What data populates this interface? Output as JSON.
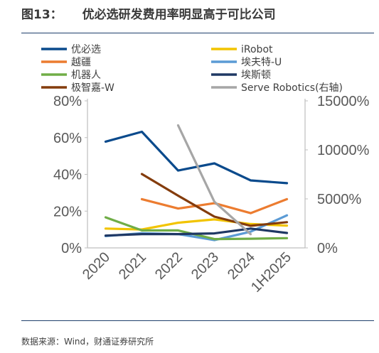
{
  "header": {
    "figure_no": "图13：",
    "title": "优必选研发费用率明显高于可比公司"
  },
  "footer": {
    "source": "数据来源：Wind，财通证券研究所"
  },
  "chart_data": {
    "type": "line",
    "categories": [
      "2020",
      "2021",
      "2022",
      "2023",
      "2024",
      "1H2025"
    ],
    "left_axis": {
      "ticks": [
        "0%",
        "20%",
        "40%",
        "60%",
        "80%"
      ],
      "ylim": [
        0,
        80
      ],
      "unit": "%"
    },
    "right_axis": {
      "ticks": [
        "0%",
        "5000%",
        "10000%",
        "15000%"
      ],
      "ylim": [
        0,
        15000
      ],
      "unit": "%"
    },
    "legend_position": "top",
    "series": [
      {
        "name": "优必选",
        "color": "#0a4a8c",
        "axis": "left",
        "values": [
          57.8,
          63.2,
          42.1,
          46.0,
          36.7,
          35.2
        ]
      },
      {
        "name": "iRobot",
        "color": "#f2c400",
        "axis": "left",
        "values": [
          10.5,
          10.0,
          13.7,
          15.5,
          13.0,
          12.1
        ]
      },
      {
        "name": "越疆",
        "color": "#ec7c30",
        "axis": "left",
        "values": [
          null,
          26.5,
          21.4,
          24.3,
          18.9,
          26.5
        ]
      },
      {
        "name": "埃夫特-U",
        "color": "#5b9bd5",
        "axis": "left",
        "values": [
          6.4,
          8.0,
          7.5,
          4.2,
          8.8,
          17.7
        ]
      },
      {
        "name": "机器人",
        "color": "#70ad47",
        "axis": "left",
        "values": [
          16.6,
          9.5,
          9.5,
          4.8,
          5.0,
          5.3
        ]
      },
      {
        "name": "埃斯顿",
        "color": "#1f3864",
        "axis": "left",
        "values": [
          6.7,
          7.5,
          7.5,
          7.9,
          10.5,
          8.1
        ]
      },
      {
        "name": "极智嘉-W",
        "color": "#843c0c",
        "axis": "left",
        "values": [
          null,
          40.2,
          28.4,
          17.0,
          12.0,
          14.0
        ]
      },
      {
        "name": "Serve Robotics(右轴)",
        "color": "#a6a6a6",
        "axis": "right",
        "values": [
          null,
          null,
          12500,
          4700,
          1400,
          null
        ]
      }
    ]
  }
}
